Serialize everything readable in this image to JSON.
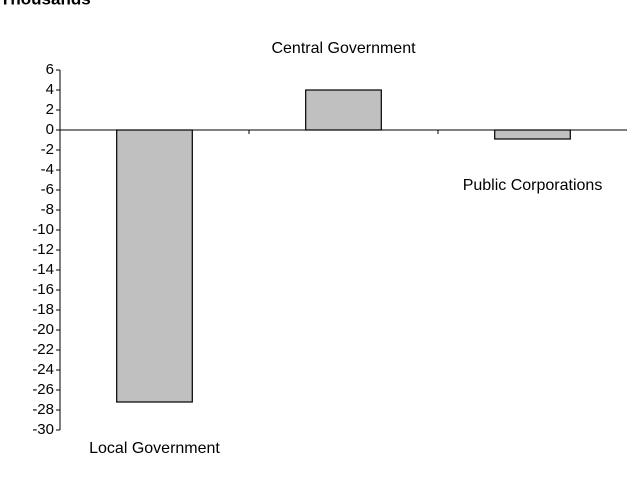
{
  "chart_data": {
    "type": "bar",
    "title": "Thousands",
    "categories": [
      "Local Government",
      "Central Government",
      "Public Corporations"
    ],
    "values": [
      -27.2,
      4,
      -0.9
    ],
    "color": "#c0c0c0",
    "ylim": [
      -30,
      6
    ],
    "yticks": [
      6,
      4,
      2,
      0,
      -2,
      -4,
      -6,
      -8,
      -10,
      -12,
      -14,
      -16,
      -18,
      -20,
      -22,
      -24,
      -26,
      -28,
      -30
    ]
  }
}
